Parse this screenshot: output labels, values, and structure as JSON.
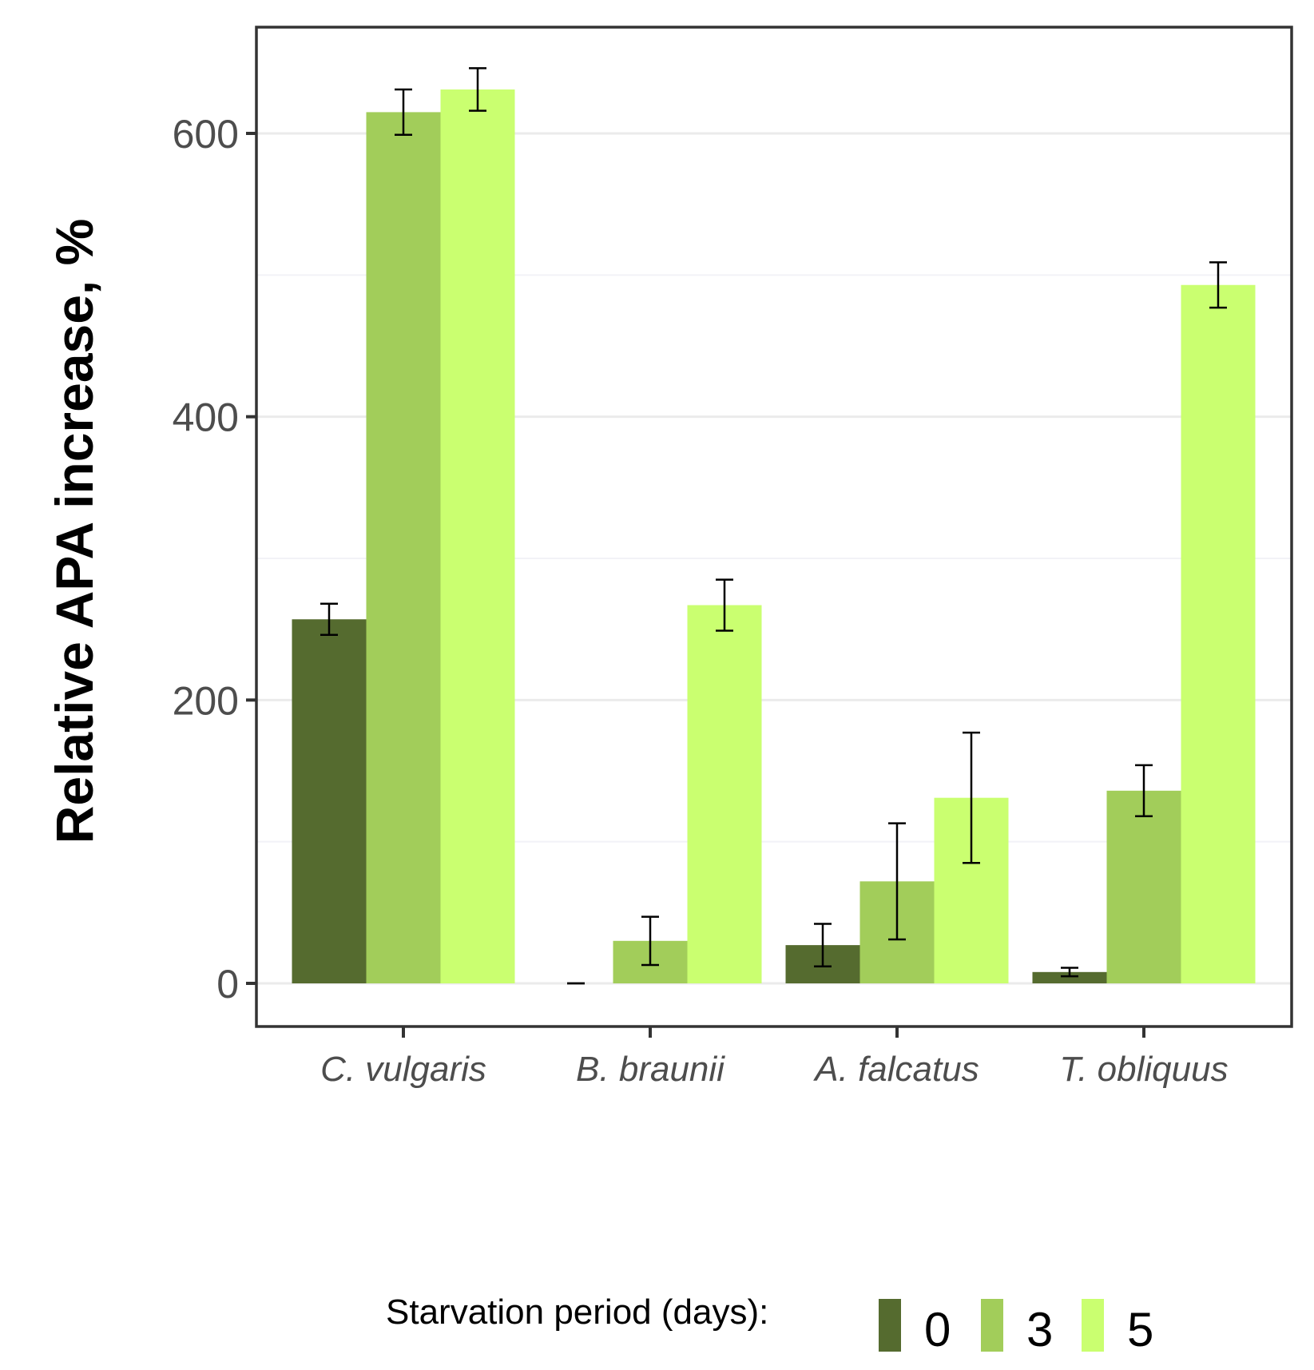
{
  "chart_data": {
    "type": "bar",
    "title": "",
    "xlabel": "",
    "ylabel": "Relative APA increase, %",
    "ylim": [
      -30,
      675
    ],
    "yticks": [
      0,
      200,
      400,
      600
    ],
    "ytick_labels": [
      "0",
      "200",
      "400",
      "600"
    ],
    "grid": true,
    "categories": [
      "C. vulgaris",
      "B. braunii",
      "A. falcatus",
      "T. obliquus"
    ],
    "legend": {
      "title": "Starvation period (days):",
      "position": "bottom"
    },
    "series": [
      {
        "name": "0",
        "color": "#556b2f",
        "values": [
          257,
          0,
          27,
          8
        ],
        "errors": [
          11,
          0,
          15,
          3
        ]
      },
      {
        "name": "3",
        "color": "#a2cd5a",
        "values": [
          615,
          30,
          72,
          136
        ],
        "errors": [
          16,
          17,
          41,
          18
        ]
      },
      {
        "name": "5",
        "color": "#caff70",
        "values": [
          631,
          267,
          131,
          493
        ],
        "errors": [
          15,
          18,
          46,
          16
        ]
      }
    ]
  }
}
